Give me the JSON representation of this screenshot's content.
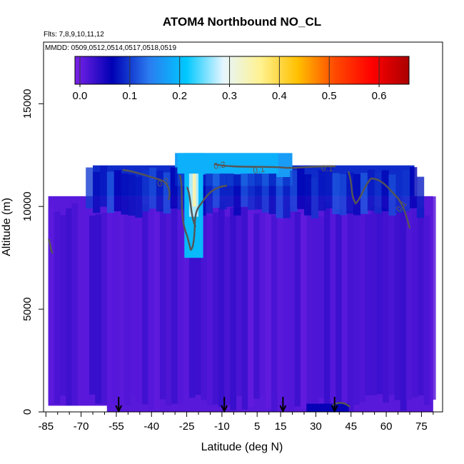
{
  "chart_data": {
    "type": "heatmap",
    "title": "ATOM4 Northbound NO_CL",
    "subtitle_lines": [
      "Flts: 7,8,9,10,11,12",
      "MMDD: 0509,0512,0514,0517,0518,0519"
    ],
    "xlabel": "Latitude (deg N)",
    "ylabel": "Altitude (m)",
    "xlim": [
      -86,
      84
    ],
    "ylim": [
      0,
      18000
    ],
    "x_ticks": [
      -85,
      -70,
      -55,
      -40,
      -25,
      -10,
      5,
      15,
      30,
      45,
      60,
      75
    ],
    "y_ticks": [
      0,
      5000,
      10000,
      15000
    ],
    "colorbar": {
      "min": -0.01,
      "max": 0.66,
      "ticks": [
        0.0,
        0.1,
        0.2,
        0.3,
        0.4,
        0.5,
        0.6
      ],
      "tick_labels": [
        "0.0",
        "0.1",
        "0.2",
        "0.3",
        "0.4",
        "0.5",
        "0.6"
      ],
      "colors": [
        "#7a22e8",
        "#0000b4",
        "#2a7cf0",
        "#00c8ff",
        "#e6f6ff",
        "#fff290",
        "#ffc000",
        "#ff4a00",
        "#ff0000",
        "#aa0000"
      ]
    },
    "contour_labels": [
      "0.2",
      "0.2",
      "0.1",
      "0.1",
      "0.1"
    ],
    "flight_turn_latitudes": [
      -54,
      -9,
      16,
      38
    ],
    "regions": [
      {
        "lat_range": [
          -84,
          80
        ],
        "alt_range": [
          0,
          10500
        ],
        "value": 0.01
      },
      {
        "lat_range": [
          -65,
          72
        ],
        "alt_range": [
          10500,
          12000
        ],
        "value": 0.09
      },
      {
        "lat_range": [
          -30,
          20
        ],
        "alt_range": [
          11000,
          12600
        ],
        "value": 0.17
      },
      {
        "lat_range": [
          -25,
          -18
        ],
        "alt_range": [
          7500,
          12600
        ],
        "value": 0.24
      },
      {
        "lat_range": [
          -23,
          -20
        ],
        "alt_range": [
          10000,
          12300
        ],
        "value": 0.32
      }
    ]
  }
}
